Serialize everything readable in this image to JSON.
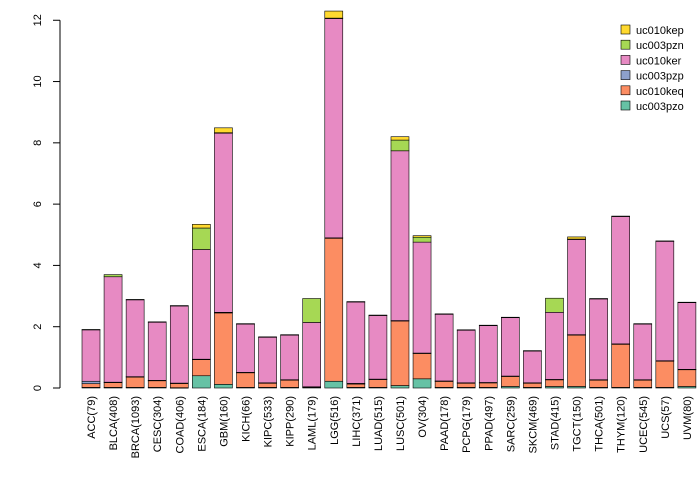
{
  "chart_data": {
    "type": "bar",
    "stacked": true,
    "title": "",
    "xlabel": "",
    "ylabel": "",
    "ylim": [
      0,
      12.4
    ],
    "yticks": [
      0,
      2,
      4,
      6,
      8,
      10,
      12
    ],
    "legend_position": "top-right",
    "categories": [
      "ACC(79)",
      "BLCA(408)",
      "BRCA(1093)",
      "CESC(304)",
      "COAD(406)",
      "ESCA(184)",
      "GBM(160)",
      "KICH(66)",
      "KIPC(533)",
      "KIPP(290)",
      "LAML(179)",
      "LGG(516)",
      "LIHC(371)",
      "LUAD(515)",
      "LUSC(501)",
      "OV(304)",
      "PAAD(178)",
      "PCPG(179)",
      "PPAD(497)",
      "SARC(259)",
      "SKCM(469)",
      "STAD(415)",
      "TGCT(150)",
      "THCA(501)",
      "THYM(120)",
      "UCEC(545)",
      "UCS(57)",
      "UVM(80)"
    ],
    "series": [
      {
        "name": "uc003pzo",
        "color": "#66c2a5",
        "values": [
          0.02,
          0.02,
          0.02,
          0.02,
          0.01,
          0.4,
          0.12,
          0.02,
          0.02,
          0.02,
          0.02,
          0.22,
          0.02,
          0.02,
          0.08,
          0.3,
          0.02,
          0.02,
          0.02,
          0.05,
          0.02,
          0.05,
          0.05,
          0.02,
          0.02,
          0.02,
          0.02,
          0.05
        ]
      },
      {
        "name": "uc010keq",
        "color": "#fc8d62",
        "values": [
          0.12,
          0.16,
          0.34,
          0.22,
          0.14,
          0.53,
          2.33,
          0.48,
          0.14,
          0.24,
          0.01,
          4.67,
          0.11,
          0.26,
          2.11,
          0.83,
          0.2,
          0.14,
          0.15,
          0.33,
          0.14,
          0.22,
          1.68,
          0.24,
          1.41,
          0.24,
          0.86,
          0.55
        ]
      },
      {
        "name": "uc003pzp",
        "color": "#8da0cb",
        "values": [
          0.08,
          0.01,
          0.01,
          0.01,
          0.01,
          0.01,
          0.02,
          0.01,
          0.01,
          0.01,
          0.01,
          0.01,
          0.02,
          0.01,
          0.01,
          0.01,
          0.01,
          0.01,
          0.01,
          0.01,
          0.01,
          0.01,
          0.01,
          0.01,
          0.01,
          0.01,
          0.01,
          0.01
        ]
      },
      {
        "name": "uc010ker",
        "color": "#e78ac3",
        "values": [
          1.68,
          3.44,
          2.51,
          1.9,
          2.52,
          3.58,
          5.85,
          1.58,
          1.49,
          1.46,
          2.1,
          7.16,
          2.66,
          2.08,
          5.54,
          3.62,
          2.18,
          1.72,
          1.86,
          1.91,
          1.04,
          2.19,
          3.11,
          2.64,
          4.16,
          1.82,
          3.9,
          2.18
        ]
      },
      {
        "name": "uc003pzn",
        "color": "#a6d854",
        "values": [
          0.01,
          0.07,
          0.01,
          0.01,
          0.01,
          0.7,
          0.01,
          0.01,
          0.01,
          0.01,
          0.78,
          0.01,
          0.01,
          0.01,
          0.35,
          0.16,
          0.01,
          0.01,
          0.01,
          0.01,
          0.01,
          0.46,
          0.01,
          0.01,
          0.01,
          0.01,
          0.01,
          0.01
        ]
      },
      {
        "name": "uc010kep",
        "color": "#ffd92f",
        "values": [
          0.0,
          0.0,
          0.0,
          0.0,
          0.0,
          0.12,
          0.16,
          0.0,
          0.0,
          0.0,
          0.0,
          0.23,
          0.0,
          0.0,
          0.11,
          0.05,
          0.0,
          0.0,
          0.0,
          0.0,
          0.0,
          0.0,
          0.07,
          0.0,
          0.0,
          0.0,
          0.0,
          0.0
        ]
      }
    ],
    "legend_order": [
      "uc010kep",
      "uc003pzn",
      "uc010ker",
      "uc003pzp",
      "uc010keq",
      "uc003pzo"
    ]
  }
}
